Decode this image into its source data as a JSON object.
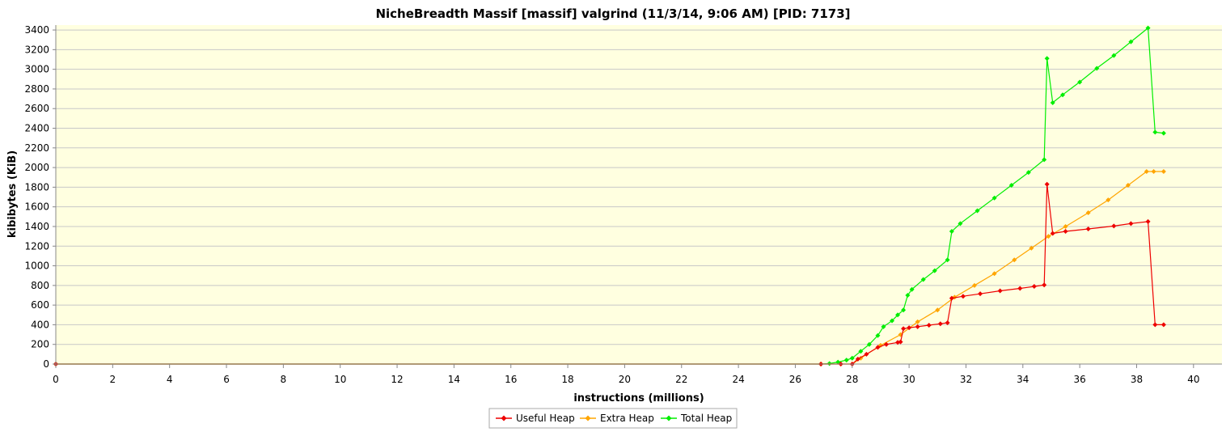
{
  "chart_data": {
    "type": "line",
    "title": "NicheBreadth Massif [massif] valgrind (11/3/14, 9:06 AM) [PID: 7173]",
    "xlabel": "instructions (millions)",
    "ylabel": "kibibytes (KiB)",
    "xlim": [
      0,
      41
    ],
    "ylim": [
      0,
      3450
    ],
    "x_ticks": [
      "0",
      "2",
      "4",
      "6",
      "8",
      "10",
      "12",
      "14",
      "16",
      "18",
      "20",
      "22",
      "24",
      "26",
      "28",
      "30",
      "32",
      "34",
      "36",
      "38",
      "40"
    ],
    "y_ticks": [
      "0",
      "200",
      "400",
      "600",
      "800",
      "1000",
      "1200",
      "1400",
      "1600",
      "1800",
      "2000",
      "2200",
      "2400",
      "2600",
      "2800",
      "3000",
      "3200",
      "3400"
    ],
    "grid": "horizontal",
    "background": "#ffffe0",
    "legend_position": "bottom-center",
    "series": [
      {
        "name": "Useful Heap",
        "color": "#ee0000",
        "points": [
          [
            0,
            0
          ],
          [
            26.9,
            0
          ],
          [
            27.6,
            0
          ],
          [
            28.0,
            0
          ],
          [
            28.2,
            50
          ],
          [
            28.5,
            100
          ],
          [
            28.9,
            170
          ],
          [
            29.2,
            200
          ],
          [
            29.6,
            220
          ],
          [
            29.7,
            225
          ],
          [
            29.8,
            360
          ],
          [
            30.0,
            370
          ],
          [
            30.3,
            380
          ],
          [
            30.7,
            395
          ],
          [
            31.1,
            410
          ],
          [
            31.35,
            420
          ],
          [
            31.5,
            670
          ],
          [
            31.9,
            690
          ],
          [
            32.5,
            715
          ],
          [
            33.2,
            745
          ],
          [
            33.9,
            770
          ],
          [
            34.4,
            790
          ],
          [
            34.75,
            805
          ],
          [
            34.85,
            1830
          ],
          [
            35.05,
            1330
          ],
          [
            35.5,
            1350
          ],
          [
            36.3,
            1375
          ],
          [
            37.2,
            1405
          ],
          [
            37.8,
            1430
          ],
          [
            38.4,
            1450
          ],
          [
            38.65,
            400
          ],
          [
            38.95,
            400
          ]
        ]
      },
      {
        "name": "Extra Heap",
        "color": "#ffa500",
        "points": [
          [
            0,
            0
          ],
          [
            26.9,
            0
          ],
          [
            27.6,
            0
          ],
          [
            28.0,
            0
          ],
          [
            28.3,
            60
          ],
          [
            29.0,
            190
          ],
          [
            29.7,
            300
          ],
          [
            30.3,
            430
          ],
          [
            31.0,
            550
          ],
          [
            31.6,
            680
          ],
          [
            32.3,
            800
          ],
          [
            33.0,
            920
          ],
          [
            33.7,
            1060
          ],
          [
            34.3,
            1180
          ],
          [
            34.9,
            1300
          ],
          [
            35.5,
            1400
          ],
          [
            36.3,
            1540
          ],
          [
            37.0,
            1670
          ],
          [
            37.7,
            1820
          ],
          [
            38.35,
            1960
          ],
          [
            38.6,
            1960
          ],
          [
            38.95,
            1960
          ]
        ]
      },
      {
        "name": "Total Heap",
        "color": "#00ee00",
        "points": [
          [
            0,
            0
          ],
          [
            26.9,
            0
          ],
          [
            27.2,
            5
          ],
          [
            27.5,
            20
          ],
          [
            27.8,
            40
          ],
          [
            28.0,
            60
          ],
          [
            28.3,
            130
          ],
          [
            28.6,
            200
          ],
          [
            28.9,
            290
          ],
          [
            29.1,
            380
          ],
          [
            29.4,
            440
          ],
          [
            29.6,
            500
          ],
          [
            29.8,
            550
          ],
          [
            29.95,
            700
          ],
          [
            30.1,
            760
          ],
          [
            30.5,
            860
          ],
          [
            30.9,
            950
          ],
          [
            31.35,
            1060
          ],
          [
            31.5,
            1350
          ],
          [
            31.8,
            1430
          ],
          [
            32.4,
            1560
          ],
          [
            33.0,
            1690
          ],
          [
            33.6,
            1820
          ],
          [
            34.2,
            1950
          ],
          [
            34.75,
            2080
          ],
          [
            34.85,
            3110
          ],
          [
            35.05,
            2660
          ],
          [
            35.4,
            2740
          ],
          [
            36.0,
            2870
          ],
          [
            36.6,
            3010
          ],
          [
            37.2,
            3140
          ],
          [
            37.8,
            3280
          ],
          [
            38.4,
            3420
          ],
          [
            38.65,
            2360
          ],
          [
            38.95,
            2350
          ]
        ]
      }
    ]
  }
}
